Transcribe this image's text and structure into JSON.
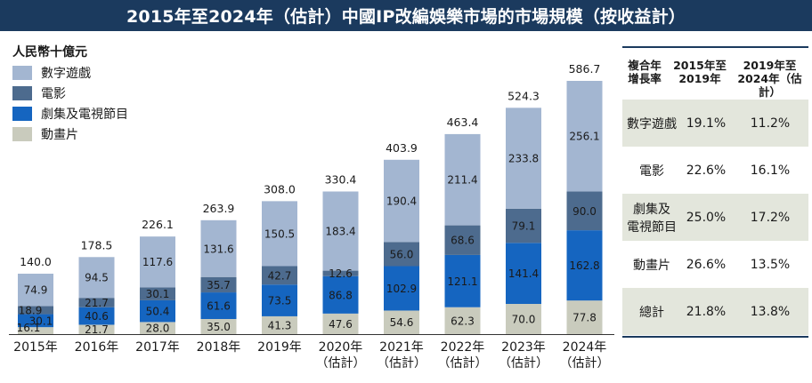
{
  "title": "2015年至2024年（估計）中國IP改編娛樂市場的市場規模（按收益計）",
  "unit_label": "人民幣十億元",
  "chart_data": {
    "type": "stacked-bar",
    "categories": [
      {
        "year": "2015年",
        "note": ""
      },
      {
        "year": "2016年",
        "note": ""
      },
      {
        "year": "2017年",
        "note": ""
      },
      {
        "year": "2018年",
        "note": ""
      },
      {
        "year": "2019年",
        "note": ""
      },
      {
        "year": "2020年",
        "note": "（估計）"
      },
      {
        "year": "2021年",
        "note": "（估計）"
      },
      {
        "year": "2022年",
        "note": "（估計）"
      },
      {
        "year": "2023年",
        "note": "（估計）"
      },
      {
        "year": "2024年",
        "note": "（估計）"
      }
    ],
    "series": [
      {
        "name": "動畫片",
        "color": "#c9cbbd",
        "label_color": "#1a1a1a",
        "values": [
          16.1,
          21.7,
          28.0,
          35.0,
          41.3,
          47.6,
          54.6,
          62.3,
          70.0,
          77.8
        ],
        "labels": [
          "16.1",
          "21.7",
          "28.0",
          "35.0",
          "41.3",
          "47.6",
          "54.6",
          "62.3",
          "70.0",
          "77.8"
        ]
      },
      {
        "name": "劇集及電視節目",
        "color": "#1565c0",
        "label_color": "#ffffff",
        "values": [
          30.1,
          40.6,
          50.4,
          61.6,
          73.5,
          86.8,
          102.9,
          121.1,
          141.4,
          162.8
        ],
        "labels": [
          "30.1",
          "40.6",
          "50.4",
          "61.6",
          "73.5",
          "86.8",
          "102.9",
          "121.1",
          "141.4",
          "162.8"
        ]
      },
      {
        "name": "電影",
        "color": "#4d6b8e",
        "label_color": "#ffffff",
        "values": [
          18.9,
          21.7,
          30.1,
          35.7,
          42.7,
          12.6,
          56.0,
          68.6,
          79.1,
          90.0
        ],
        "labels": [
          "18.9",
          "21.7",
          "30.1",
          "35.7",
          "42.7",
          "12.6",
          "56.0",
          "68.6",
          "79.1",
          "90.0"
        ]
      },
      {
        "name": "數字遊戲",
        "color": "#a3b6d1",
        "label_color": "#1a1a1a",
        "values": [
          74.9,
          94.5,
          117.6,
          131.6,
          150.5,
          183.4,
          190.4,
          211.4,
          233.8,
          256.1
        ],
        "labels": [
          "74.9",
          "94.5",
          "117.6",
          "131.6",
          "150.5",
          "183.4",
          "190.4",
          "211.4",
          "233.8",
          "256.1"
        ]
      }
    ],
    "totals": [
      140.0,
      178.5,
      226.1,
      263.9,
      308.0,
      330.4,
      403.9,
      463.4,
      524.3,
      586.7
    ],
    "total_labels": [
      "140.0",
      "178.5",
      "226.1",
      "263.9",
      "308.0",
      "330.4",
      "403.9",
      "463.4",
      "524.3",
      "586.7"
    ],
    "ylim": [
      0,
      586.7
    ],
    "legend_order": [
      "數字遊戲",
      "電影",
      "劇集及電視節目",
      "動畫片"
    ]
  },
  "cagr_table": {
    "header": {
      "label_line1": "複合年",
      "label_line2": "增長率",
      "col1_line1": "2015年至",
      "col1_line2": "2019年",
      "col2_line1": "2019年至",
      "col2_line2": "2024年（估計）"
    },
    "rows": [
      {
        "label_line1": "數字遊戲",
        "label_line2": "",
        "v1": "19.1%",
        "v2": "11.2%"
      },
      {
        "label_line1": "電影",
        "label_line2": "",
        "v1": "22.6%",
        "v2": "16.1%"
      },
      {
        "label_line1": "劇集及",
        "label_line2": "電視節目",
        "v1": "25.0%",
        "v2": "17.2%"
      },
      {
        "label_line1": "動畫片",
        "label_line2": "",
        "v1": "26.6%",
        "v2": "13.5%"
      },
      {
        "label_line1": "總計",
        "label_line2": "",
        "v1": "21.8%",
        "v2": "13.8%"
      }
    ]
  }
}
